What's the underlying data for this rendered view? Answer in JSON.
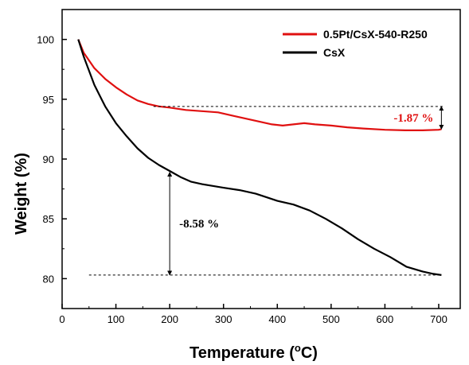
{
  "chart_data": {
    "type": "line",
    "title": "",
    "xlabel": "Temperature (",
    "xlabel_unit_sup": "o",
    "xlabel_unit": "C)",
    "ylabel": "Weight (%)",
    "xlim": [
      0,
      740
    ],
    "ylim": [
      77.5,
      102.5
    ],
    "xticks": [
      0,
      100,
      200,
      300,
      400,
      500,
      600,
      700
    ],
    "yticks": [
      80,
      85,
      90,
      95,
      100
    ],
    "grid": false,
    "legend_position": "top-right",
    "series": [
      {
        "name": "0.5Pt/CsX-540-R250",
        "color": "#e01010",
        "points": [
          [
            30,
            100
          ],
          [
            40,
            98.9
          ],
          [
            60,
            97.6
          ],
          [
            80,
            96.7
          ],
          [
            100,
            96.0
          ],
          [
            120,
            95.4
          ],
          [
            140,
            94.9
          ],
          [
            160,
            94.6
          ],
          [
            180,
            94.4
          ],
          [
            200,
            94.3
          ],
          [
            230,
            94.1
          ],
          [
            260,
            94.0
          ],
          [
            290,
            93.9
          ],
          [
            320,
            93.6
          ],
          [
            350,
            93.3
          ],
          [
            370,
            93.1
          ],
          [
            390,
            92.9
          ],
          [
            410,
            92.8
          ],
          [
            430,
            92.9
          ],
          [
            450,
            93.0
          ],
          [
            470,
            92.9
          ],
          [
            500,
            92.8
          ],
          [
            530,
            92.65
          ],
          [
            560,
            92.55
          ],
          [
            600,
            92.45
          ],
          [
            640,
            92.4
          ],
          [
            670,
            92.4
          ],
          [
            700,
            92.45
          ],
          [
            705,
            92.5
          ]
        ]
      },
      {
        "name": "CsX",
        "color": "#000000",
        "points": [
          [
            30,
            100
          ],
          [
            40,
            98.6
          ],
          [
            60,
            96.2
          ],
          [
            80,
            94.4
          ],
          [
            100,
            93.0
          ],
          [
            120,
            91.9
          ],
          [
            140,
            90.9
          ],
          [
            160,
            90.1
          ],
          [
            180,
            89.5
          ],
          [
            200,
            89.0
          ],
          [
            220,
            88.5
          ],
          [
            240,
            88.1
          ],
          [
            260,
            87.9
          ],
          [
            280,
            87.75
          ],
          [
            300,
            87.6
          ],
          [
            330,
            87.4
          ],
          [
            360,
            87.1
          ],
          [
            380,
            86.8
          ],
          [
            400,
            86.5
          ],
          [
            430,
            86.2
          ],
          [
            460,
            85.7
          ],
          [
            490,
            85.0
          ],
          [
            520,
            84.2
          ],
          [
            550,
            83.3
          ],
          [
            580,
            82.5
          ],
          [
            610,
            81.8
          ],
          [
            640,
            81.0
          ],
          [
            670,
            80.6
          ],
          [
            690,
            80.4
          ],
          [
            705,
            80.3
          ]
        ]
      }
    ],
    "annotations": [
      {
        "text": "-1.87 %",
        "color": "#e01010",
        "y_from": 94.4,
        "y_to": 92.5,
        "at_x": 705,
        "reference_x_start": 170
      },
      {
        "text": "-8.58 %",
        "color": "#000000",
        "y_from": 88.9,
        "y_to": 80.3,
        "at_x": 200,
        "reference_x_start": 50
      }
    ]
  }
}
